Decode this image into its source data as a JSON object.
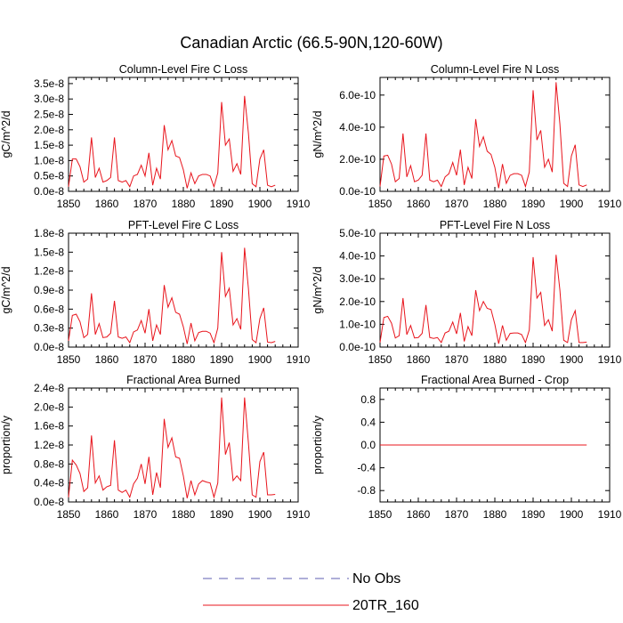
{
  "figure": {
    "title": "Canadian Arctic (66.5-90N,120-60W)",
    "line_color": "#e8141c",
    "obs_color": "#5f5fb0"
  },
  "legend": {
    "items": [
      {
        "label": "No Obs",
        "style": "dashed",
        "color": "#5f5fb0"
      },
      {
        "label": "20TR_160",
        "style": "solid",
        "color": "#e8141c"
      }
    ]
  },
  "chart_data": [
    {
      "type": "line",
      "title": "Column-Level Fire C Loss",
      "ylabel": "gC/m^2/d",
      "xlim": [
        1850,
        1910
      ],
      "ylim": [
        0,
        3.7e-08
      ],
      "xticks": [
        1850,
        1860,
        1870,
        1880,
        1890,
        1900,
        1910
      ],
      "xtick_labels": [
        "1850",
        "1860",
        "1870",
        "1880",
        "1890",
        "1900",
        "1910"
      ],
      "yticks": [
        0,
        5e-09,
        1e-08,
        1.5e-08,
        2e-08,
        2.5e-08,
        3e-08,
        3.5e-08
      ],
      "ytick_labels": [
        "0.0e-8",
        "0.5e-8",
        "1.0e-8",
        "1.5e-8",
        "2.0e-8",
        "2.5e-8",
        "3.0e-8",
        "3.5e-8"
      ],
      "series": [
        {
          "name": "20TR_160",
          "x": [
            1850,
            1851,
            1852,
            1853,
            1854,
            1855,
            1856,
            1857,
            1858,
            1859,
            1860,
            1861,
            1862,
            1863,
            1864,
            1865,
            1866,
            1867,
            1868,
            1869,
            1870,
            1871,
            1872,
            1873,
            1874,
            1875,
            1876,
            1877,
            1878,
            1879,
            1880,
            1881,
            1882,
            1883,
            1884,
            1885,
            1886,
            1887,
            1888,
            1889,
            1890,
            1891,
            1892,
            1893,
            1894,
            1895,
            1896,
            1897,
            1898,
            1899,
            1900,
            1901,
            1902,
            1903,
            1904
          ],
          "values": [
            1.5e-09,
            1.05e-08,
            1.05e-08,
            8e-09,
            3e-09,
            4e-09,
            1.75e-08,
            4.5e-09,
            7.5e-09,
            3e-09,
            3.5e-09,
            4.5e-09,
            1.75e-08,
            3.5e-09,
            3e-09,
            3.5e-09,
            1.5e-09,
            5e-09,
            5.5e-09,
            8.5e-09,
            5e-09,
            1.25e-08,
            2e-09,
            7.5e-09,
            4e-09,
            2.15e-08,
            1.35e-08,
            1.65e-08,
            1.15e-08,
            1.1e-08,
            7e-09,
            1e-09,
            6e-09,
            2.5e-09,
            5e-09,
            5.5e-09,
            5.5e-09,
            5e-09,
            1.5e-09,
            6e-09,
            2.9e-08,
            1.5e-08,
            1.7e-08,
            6.5e-09,
            9e-09,
            5.5e-09,
            3.1e-08,
            1.9e-08,
            2.5e-09,
            1.5e-09,
            1.05e-08,
            1.35e-08,
            2e-09,
            1.5e-09,
            2e-09
          ]
        }
      ]
    },
    {
      "type": "line",
      "title": "Column-Level Fire N Loss",
      "ylabel": "gN/m^2/d",
      "xlim": [
        1850,
        1910
      ],
      "ylim": [
        0,
        7.1e-10
      ],
      "xticks": [
        1850,
        1860,
        1870,
        1880,
        1890,
        1900,
        1910
      ],
      "xtick_labels": [
        "1850",
        "1860",
        "1870",
        "1880",
        "1890",
        "1900",
        "1910"
      ],
      "yticks": [
        0,
        2e-10,
        4e-10,
        6e-10
      ],
      "ytick_labels": [
        "0.0e-10",
        "2.0e-10",
        "4.0e-10",
        "6.0e-10"
      ],
      "series": [
        {
          "name": "20TR_160",
          "x": [
            1850,
            1851,
            1852,
            1853,
            1854,
            1855,
            1856,
            1857,
            1858,
            1859,
            1860,
            1861,
            1862,
            1863,
            1864,
            1865,
            1866,
            1867,
            1868,
            1869,
            1870,
            1871,
            1872,
            1873,
            1874,
            1875,
            1876,
            1877,
            1878,
            1879,
            1880,
            1881,
            1882,
            1883,
            1884,
            1885,
            1886,
            1887,
            1888,
            1889,
            1890,
            1891,
            1892,
            1893,
            1894,
            1895,
            1896,
            1897,
            1898,
            1899,
            1900,
            1901,
            1902,
            1903,
            1904
          ],
          "values": [
            3e-11,
            2.2e-10,
            2.25e-10,
            1.7e-10,
            6e-11,
            8e-11,
            3.6e-10,
            9e-11,
            1.6e-10,
            6e-11,
            7e-11,
            1e-10,
            3.6e-10,
            7e-11,
            6e-11,
            7e-11,
            3e-11,
            9e-11,
            1.1e-10,
            1.8e-10,
            1e-10,
            2.6e-10,
            4e-11,
            1.5e-10,
            8e-11,
            4.5e-10,
            2.8e-10,
            3.4e-10,
            2.5e-10,
            2.3e-10,
            1.5e-10,
            2e-11,
            1.7e-10,
            5e-11,
            1e-10,
            1.1e-10,
            1.1e-10,
            1e-10,
            3e-11,
            1.2e-10,
            6.3e-10,
            3.2e-10,
            3.8e-10,
            1.5e-10,
            2e-10,
            1.2e-10,
            6.8e-10,
            4.2e-10,
            5e-11,
            3e-11,
            2.2e-10,
            2.9e-10,
            4e-11,
            3e-11,
            4e-11
          ]
        }
      ]
    },
    {
      "type": "line",
      "title": "PFT-Level Fire C Loss",
      "ylabel": "gC/m^2/d",
      "xlim": [
        1850,
        1910
      ],
      "ylim": [
        0,
        1.8e-08
      ],
      "xticks": [
        1850,
        1860,
        1870,
        1880,
        1890,
        1900,
        1910
      ],
      "xtick_labels": [
        "1850",
        "1860",
        "1870",
        "1880",
        "1890",
        "1900",
        "1910"
      ],
      "yticks": [
        0,
        3e-09,
        6e-09,
        9e-09,
        1.2e-08,
        1.5e-08,
        1.8e-08
      ],
      "ytick_labels": [
        "0.0e-8",
        "0.3e-8",
        "0.6e-8",
        "0.9e-8",
        "1.2e-8",
        "1.5e-8",
        "1.8e-8"
      ],
      "series": [
        {
          "name": "20TR_160",
          "x": [
            1850,
            1851,
            1852,
            1853,
            1854,
            1855,
            1856,
            1857,
            1858,
            1859,
            1860,
            1861,
            1862,
            1863,
            1864,
            1865,
            1866,
            1867,
            1868,
            1869,
            1870,
            1871,
            1872,
            1873,
            1874,
            1875,
            1876,
            1877,
            1878,
            1879,
            1880,
            1881,
            1882,
            1883,
            1884,
            1885,
            1886,
            1887,
            1888,
            1889,
            1890,
            1891,
            1892,
            1893,
            1894,
            1895,
            1896,
            1897,
            1898,
            1899,
            1900,
            1901,
            1902,
            1903,
            1904
          ],
          "values": [
            1e-09,
            5e-09,
            5.2e-09,
            4e-09,
            1.5e-09,
            2e-09,
            8.5e-09,
            2e-09,
            3.7e-09,
            1.5e-09,
            1.6e-09,
            2.2e-09,
            7.3e-09,
            1.6e-09,
            1.4e-09,
            1.6e-09,
            7e-10,
            2.4e-09,
            2.7e-09,
            4.2e-09,
            2.2e-09,
            6e-09,
            1e-09,
            3.5e-09,
            2e-09,
            9.8e-09,
            6.3e-09,
            7.8e-09,
            5.5e-09,
            5.2e-09,
            3.2e-09,
            5e-10,
            3.8e-09,
            1e-09,
            2.3e-09,
            2.5e-09,
            2.5e-09,
            2.2e-09,
            7e-10,
            3e-09,
            1.5e-08,
            8e-09,
            9.3e-09,
            3.5e-09,
            4.5e-09,
            2.8e-09,
            1.57e-08,
            9.3e-09,
            1.2e-09,
            7e-10,
            4.5e-09,
            6.2e-09,
            8e-10,
            7e-10,
            9e-10
          ]
        }
      ]
    },
    {
      "type": "line",
      "title": "PFT-Level Fire N Loss",
      "ylabel": "gN/m^2/d",
      "xlim": [
        1850,
        1910
      ],
      "ylim": [
        0,
        5e-10
      ],
      "xticks": [
        1850,
        1860,
        1870,
        1880,
        1890,
        1900,
        1910
      ],
      "xtick_labels": [
        "1850",
        "1860",
        "1870",
        "1880",
        "1890",
        "1900",
        "1910"
      ],
      "yticks": [
        0,
        1e-10,
        2e-10,
        3e-10,
        4e-10,
        5e-10
      ],
      "ytick_labels": [
        "0.0e-10",
        "1.0e-10",
        "2.0e-10",
        "3.0e-10",
        "4.0e-10",
        "5.0e-10"
      ],
      "series": [
        {
          "name": "20TR_160",
          "x": [
            1850,
            1851,
            1852,
            1853,
            1854,
            1855,
            1856,
            1857,
            1858,
            1859,
            1860,
            1861,
            1862,
            1863,
            1864,
            1865,
            1866,
            1867,
            1868,
            1869,
            1870,
            1871,
            1872,
            1873,
            1874,
            1875,
            1876,
            1877,
            1878,
            1879,
            1880,
            1881,
            1882,
            1883,
            1884,
            1885,
            1886,
            1887,
            1888,
            1889,
            1890,
            1891,
            1892,
            1893,
            1894,
            1895,
            1896,
            1897,
            1898,
            1899,
            1900,
            1901,
            1902,
            1903,
            1904
          ],
          "values": [
            2e-11,
            1.3e-10,
            1.35e-10,
            1.05e-10,
            4e-11,
            5e-11,
            2.15e-10,
            5.5e-11,
            9.5e-11,
            4e-11,
            4.2e-11,
            6e-11,
            1.85e-10,
            4.2e-11,
            3.8e-11,
            4.2e-11,
            2e-11,
            6.2e-11,
            7e-11,
            1.1e-10,
            5.8e-11,
            1.5e-10,
            2.5e-11,
            9e-11,
            5e-11,
            2.5e-10,
            1.6e-10,
            2e-10,
            1.7e-10,
            1.65e-10,
            1e-10,
            1.5e-11,
            9.5e-11,
            3e-11,
            6e-11,
            6.2e-11,
            6.2e-11,
            5.5e-11,
            2e-11,
            7.5e-11,
            3.95e-10,
            2.15e-10,
            2.4e-10,
            9.5e-11,
            1.2e-10,
            7e-11,
            4.05e-10,
            2.5e-10,
            3e-11,
            2e-11,
            1.2e-10,
            1.6e-10,
            2e-11,
            2e-11,
            2.2e-11
          ]
        }
      ]
    },
    {
      "type": "line",
      "title": "Fractional Area Burned",
      "ylabel": "proportion/y",
      "xlim": [
        1850,
        1910
      ],
      "ylim": [
        0,
        2.4e-08
      ],
      "xticks": [
        1850,
        1860,
        1870,
        1880,
        1890,
        1900,
        1910
      ],
      "xtick_labels": [
        "1850",
        "1860",
        "1870",
        "1880",
        "1890",
        "1900",
        "1910"
      ],
      "yticks": [
        0,
        4e-09,
        8e-09,
        1.2e-08,
        1.6e-08,
        2e-08,
        2.4e-08
      ],
      "ytick_labels": [
        "0.0e-8",
        "0.4e-8",
        "0.8e-8",
        "1.2e-8",
        "1.6e-8",
        "2.0e-8",
        "2.4e-8"
      ],
      "series": [
        {
          "name": "20TR_160",
          "x": [
            1850,
            1851,
            1852,
            1853,
            1854,
            1855,
            1856,
            1857,
            1858,
            1859,
            1860,
            1861,
            1862,
            1863,
            1864,
            1865,
            1866,
            1867,
            1868,
            1869,
            1870,
            1871,
            1872,
            1873,
            1874,
            1875,
            1876,
            1877,
            1878,
            1879,
            1880,
            1881,
            1882,
            1883,
            1884,
            1885,
            1886,
            1887,
            1888,
            1889,
            1890,
            1891,
            1892,
            1893,
            1894,
            1895,
            1896,
            1897,
            1898,
            1899,
            1900,
            1901,
            1902,
            1903,
            1904
          ],
          "values": [
            1e-09,
            8.8e-09,
            7.8e-09,
            6e-09,
            2.2e-09,
            3e-09,
            1.4e-08,
            4e-09,
            5.5e-09,
            2.5e-09,
            3.2e-09,
            3.5e-09,
            1.3e-08,
            2.5e-09,
            2e-09,
            2.5e-09,
            1e-09,
            3.8e-09,
            5e-09,
            8e-09,
            3.8e-09,
            9.5e-09,
            1.5e-09,
            6.2e-09,
            3e-09,
            1.75e-08,
            1.15e-08,
            1.35e-08,
            9.5e-09,
            9.2e-09,
            5.5e-09,
            8e-10,
            4.5e-09,
            1.5e-09,
            3.8e-09,
            4.5e-09,
            4.2e-09,
            4e-09,
            1e-09,
            4e-09,
            2.2e-08,
            1e-08,
            1.25e-08,
            4.5e-09,
            5.5e-09,
            4.5e-09,
            2.2e-08,
            1.25e-08,
            1.5e-09,
            1e-09,
            8.5e-09,
            1.05e-08,
            1.5e-09,
            1.5e-09,
            1.6e-09
          ]
        }
      ]
    },
    {
      "type": "line",
      "title": "Fractional Area Burned - Crop",
      "ylabel": "proportion/y",
      "xlim": [
        1850,
        1910
      ],
      "ylim": [
        -1.0,
        1.0
      ],
      "xticks": [
        1850,
        1860,
        1870,
        1880,
        1890,
        1900,
        1910
      ],
      "xtick_labels": [
        "1850",
        "1860",
        "1870",
        "1880",
        "1890",
        "1900",
        "1910"
      ],
      "yticks": [
        -0.8,
        -0.4,
        0.0,
        0.4,
        0.8
      ],
      "ytick_labels": [
        "-0.8",
        "-0.4",
        "0.0",
        "0.4",
        "0.8"
      ],
      "series": [
        {
          "name": "20TR_160",
          "x": [
            1850,
            1904
          ],
          "values": [
            0,
            0
          ]
        }
      ]
    }
  ]
}
